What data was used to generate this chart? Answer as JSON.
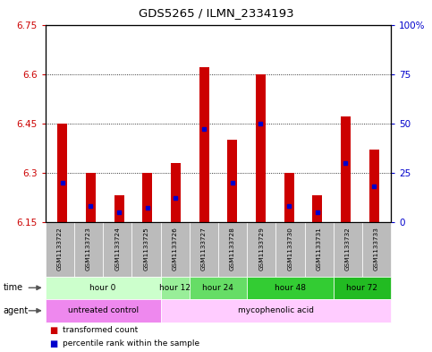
{
  "title": "GDS5265 / ILMN_2334193",
  "samples": [
    "GSM1133722",
    "GSM1133723",
    "GSM1133724",
    "GSM1133725",
    "GSM1133726",
    "GSM1133727",
    "GSM1133728",
    "GSM1133729",
    "GSM1133730",
    "GSM1133731",
    "GSM1133732",
    "GSM1133733"
  ],
  "transformed_counts": [
    6.45,
    6.3,
    6.23,
    6.3,
    6.33,
    6.62,
    6.4,
    6.6,
    6.3,
    6.23,
    6.47,
    6.37
  ],
  "percentile_ranks": [
    20,
    8,
    5,
    7,
    12,
    47,
    20,
    50,
    8,
    5,
    30,
    18
  ],
  "ylim_left": [
    6.15,
    6.75
  ],
  "ylim_right": [
    0,
    100
  ],
  "yticks_left": [
    6.15,
    6.3,
    6.45,
    6.6,
    6.75
  ],
  "yticks_right": [
    0,
    25,
    50,
    75,
    100
  ],
  "ytick_labels_left": [
    "6.15",
    "6.3",
    "6.45",
    "6.6",
    "6.75"
  ],
  "ytick_labels_right": [
    "0",
    "25",
    "50",
    "75",
    "100%"
  ],
  "bar_color": "#cc0000",
  "dot_color": "#0000cc",
  "bar_bottom": 6.15,
  "time_groups": [
    {
      "label": "hour 0",
      "indices": [
        0,
        1,
        2,
        3
      ],
      "color": "#ccffcc"
    },
    {
      "label": "hour 12",
      "indices": [
        4
      ],
      "color": "#99ee99"
    },
    {
      "label": "hour 24",
      "indices": [
        5,
        6
      ],
      "color": "#66dd66"
    },
    {
      "label": "hour 48",
      "indices": [
        7,
        8,
        9
      ],
      "color": "#33cc33"
    },
    {
      "label": "hour 72",
      "indices": [
        10,
        11
      ],
      "color": "#22bb22"
    }
  ],
  "agent_groups": [
    {
      "label": "untreated control",
      "indices": [
        0,
        1,
        2,
        3
      ],
      "color": "#ee88ee"
    },
    {
      "label": "mycophenolic acid",
      "indices": [
        4,
        5,
        6,
        7,
        8,
        9,
        10,
        11
      ],
      "color": "#ffccff"
    }
  ],
  "legend_items": [
    {
      "color": "#cc0000",
      "label": "transformed count"
    },
    {
      "color": "#0000cc",
      "label": "percentile rank within the sample"
    }
  ],
  "bg_sample": "#bbbbbb",
  "bar_width": 0.35
}
